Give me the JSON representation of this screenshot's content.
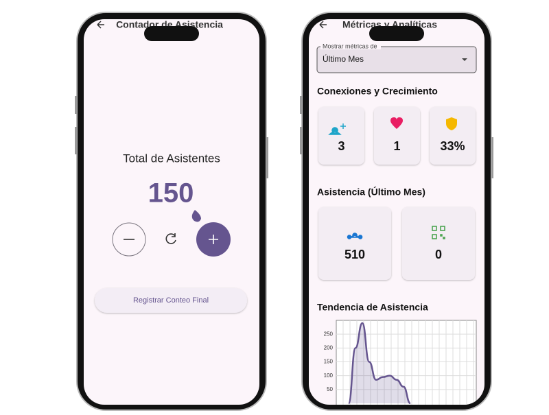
{
  "left": {
    "header": "Contador de Asistencia",
    "label": "Total de Asistentes",
    "count": 150,
    "button": "Registrar Conteo Final"
  },
  "right": {
    "header": "Métricas y Analíticas",
    "dropdown": {
      "label": "Mostrar métricas de",
      "value": "Último Mes"
    },
    "section1": {
      "title": "Conexiones y Crecimiento",
      "stats": [
        "3",
        "1",
        "33%"
      ]
    },
    "section2": {
      "title": "Asistencia (Último Mes)",
      "stats": [
        "510",
        "0"
      ]
    },
    "trend": {
      "title": "Tendencia de Asistencia",
      "ylim": [
        0,
        300
      ],
      "yticks": [
        50,
        100,
        150,
        200,
        250
      ],
      "grid": true,
      "color": "#65558f",
      "values": [
        0,
        200,
        290,
        150,
        85,
        95,
        100,
        85,
        60,
        0
      ]
    }
  }
}
